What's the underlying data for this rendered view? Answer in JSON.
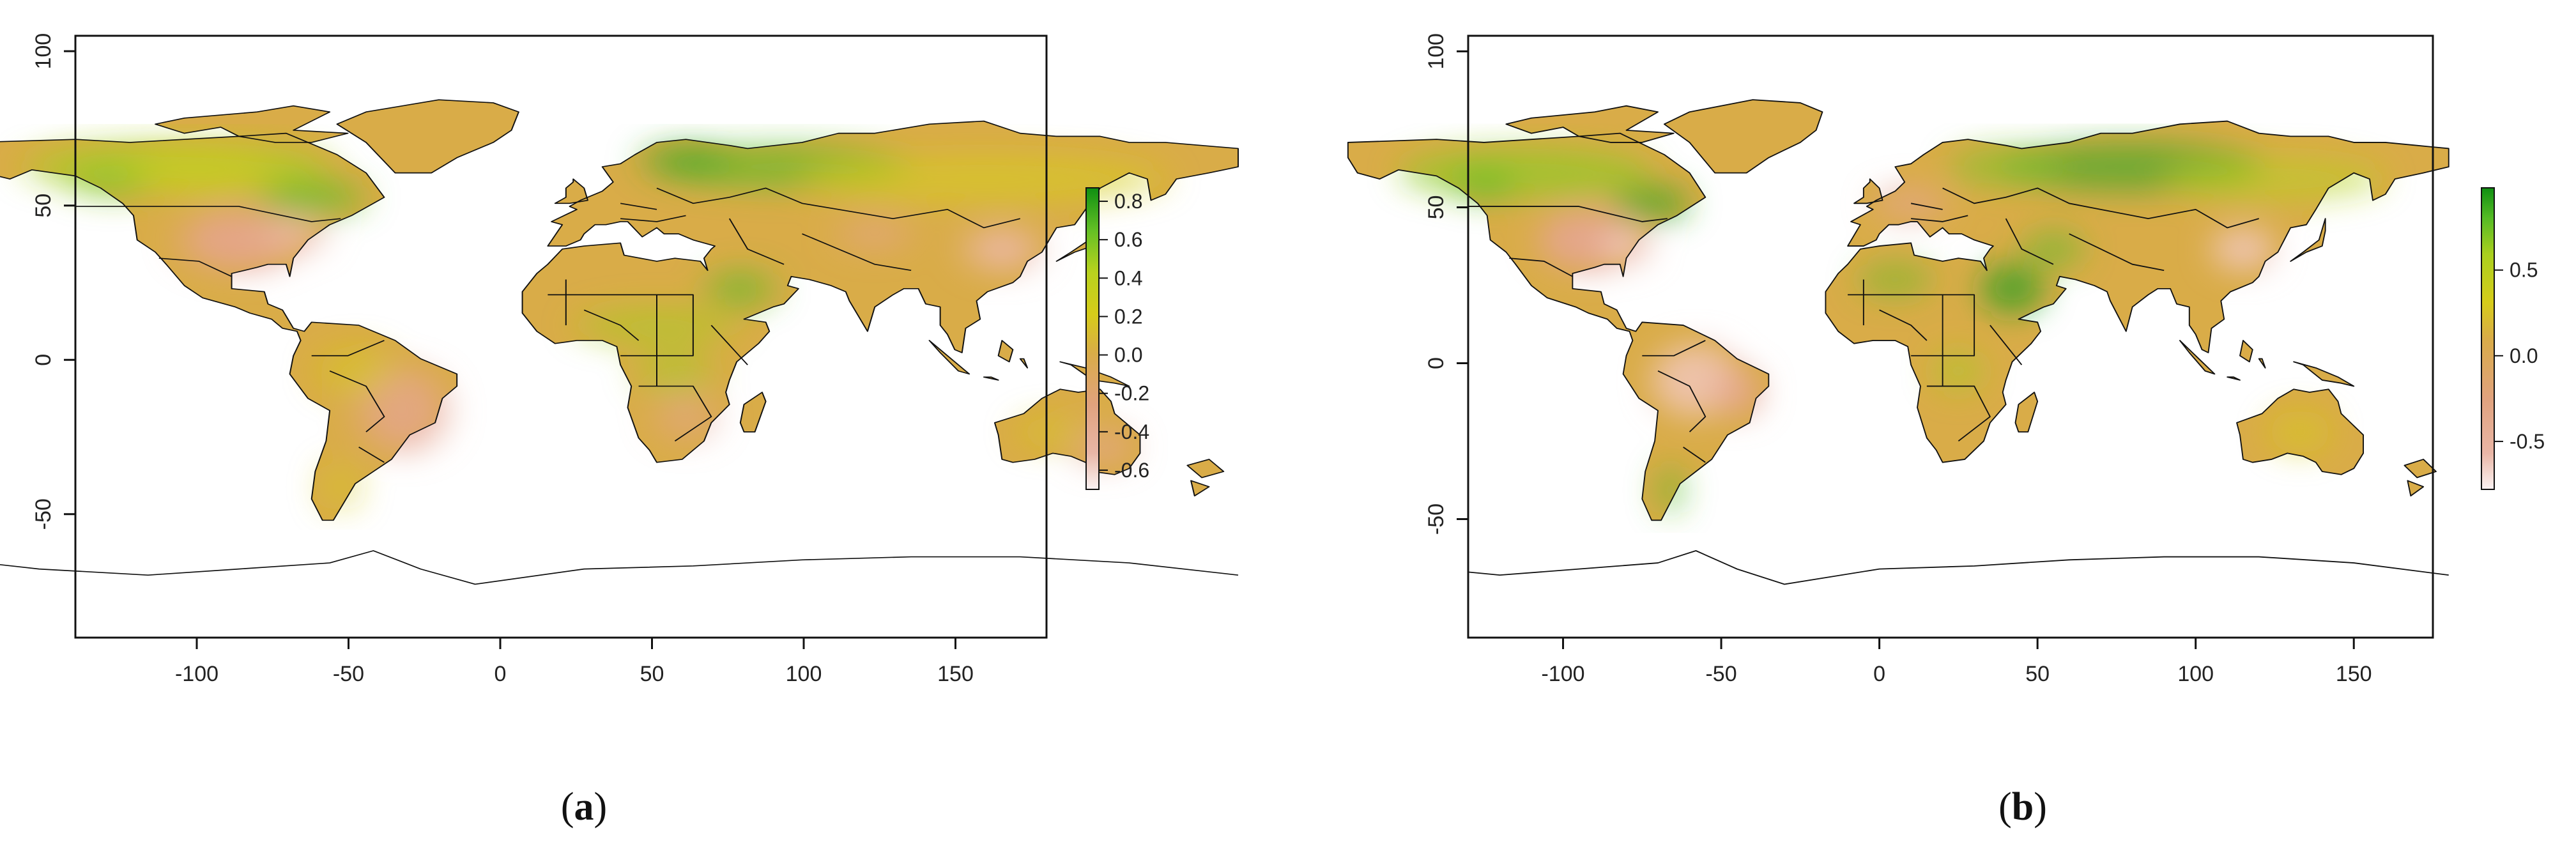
{
  "panels": [
    {
      "caption_open": "(",
      "caption_letter": "a",
      "caption_close": ")",
      "x_ticks": [
        "-100",
        "-50",
        "0",
        "50",
        "100",
        "150"
      ],
      "y_ticks": [
        "-50",
        "0",
        "50",
        "100"
      ],
      "legend_ticks": [
        "0.8",
        "0.6",
        "0.4",
        "0.2",
        "0.0",
        "-0.2",
        "-0.4",
        "-0.6"
      ],
      "map_extent": {
        "lon": [
          -140,
          180
        ],
        "lat": [
          -90,
          105
        ]
      }
    },
    {
      "caption_open": "(",
      "caption_letter": "b",
      "caption_close": ")",
      "x_ticks": [
        "-100",
        "-50",
        "0",
        "50",
        "100",
        "150"
      ],
      "y_ticks": [
        "-50",
        "0",
        "50",
        "100"
      ],
      "legend_ticks": [
        "0.5",
        "0.0",
        "-0.5"
      ],
      "map_extent": {
        "lon": [
          -130,
          175
        ],
        "lat": [
          -88,
          105
        ]
      }
    }
  ],
  "colors": {
    "high": "#1f9e1f",
    "mid": "#d8d020",
    "neutral": "#d9a84a",
    "low": "#e3a48f",
    "min": "#fbf3f3",
    "border": "#111111"
  }
}
